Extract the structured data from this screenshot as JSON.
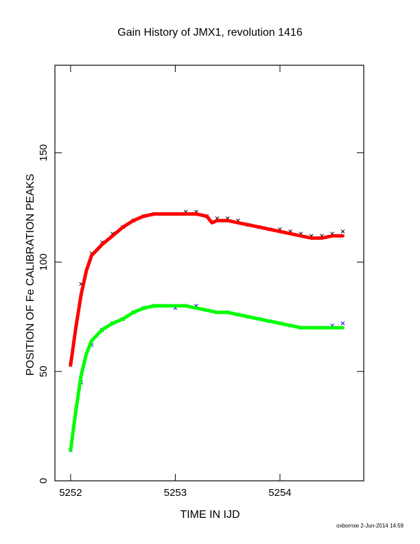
{
  "chart_data": {
    "type": "scatter",
    "title": "Gain History of JMX1, revolution 1416",
    "xlabel": "TIME IN IJD",
    "ylabel": "POSITION OF Fe CALIBRATION PEAKS",
    "xlim": [
      5251.85,
      5254.8
    ],
    "ylim": [
      0,
      190
    ],
    "x_ticks": [
      5252,
      5253,
      5254
    ],
    "y_ticks": [
      0,
      50,
      100,
      150
    ],
    "grid": false,
    "series": [
      {
        "role": "upper-peak-measurements",
        "color": "#000000",
        "marker": "x",
        "x": [
          5252.0,
          5252.1,
          5252.2,
          5252.3,
          5252.4,
          5252.5,
          5252.6,
          5252.7,
          5252.8,
          5252.9,
          5253.0,
          5253.1,
          5253.2,
          5253.3,
          5253.4,
          5253.5,
          5253.6,
          5253.7,
          5253.8,
          5253.9,
          5254.0,
          5254.1,
          5254.2,
          5254.3,
          5254.4,
          5254.5,
          5254.6
        ],
        "y": [
          53,
          90,
          104,
          109,
          113,
          116,
          119,
          121,
          122,
          122,
          122,
          123,
          123,
          121,
          120,
          120,
          119,
          117,
          116,
          115,
          115,
          114,
          113,
          112,
          112,
          113,
          114
        ]
      },
      {
        "role": "upper-peak-fit",
        "color": "#ff0000",
        "marker": "line",
        "x": [
          5252.0,
          5252.05,
          5252.1,
          5252.15,
          5252.2,
          5252.3,
          5252.4,
          5252.5,
          5252.6,
          5252.7,
          5252.8,
          5252.9,
          5253.0,
          5253.1,
          5253.2,
          5253.3,
          5253.35,
          5253.4,
          5253.5,
          5253.6,
          5253.7,
          5253.8,
          5253.9,
          5254.0,
          5254.1,
          5254.2,
          5254.3,
          5254.4,
          5254.5,
          5254.6
        ],
        "y": [
          53,
          70,
          85,
          96,
          103,
          108,
          112,
          116,
          119,
          121,
          122,
          122,
          122,
          122,
          122,
          121,
          118,
          119,
          119,
          118,
          117,
          116,
          115,
          114,
          113,
          112,
          111,
          111,
          112,
          112
        ]
      },
      {
        "role": "lower-peak-measurements",
        "color": "#0000ff",
        "marker": "x",
        "x": [
          5252.0,
          5252.1,
          5252.2,
          5252.3,
          5252.4,
          5252.5,
          5252.6,
          5252.7,
          5252.8,
          5252.9,
          5253.0,
          5253.1,
          5253.2,
          5253.3,
          5253.4,
          5253.5,
          5253.6,
          5253.7,
          5253.8,
          5253.9,
          5254.0,
          5254.1,
          5254.2,
          5254.3,
          5254.4,
          5254.5,
          5254.6
        ],
        "y": [
          14,
          45,
          62,
          69,
          72,
          74,
          77,
          79,
          80,
          80,
          79,
          80,
          80,
          78,
          77,
          77,
          76,
          75,
          74,
          73,
          72,
          71,
          70,
          70,
          70,
          71,
          72
        ]
      },
      {
        "role": "lower-peak-fit",
        "color": "#00ff00",
        "marker": "line",
        "x": [
          5252.0,
          5252.05,
          5252.1,
          5252.15,
          5252.2,
          5252.3,
          5252.4,
          5252.5,
          5252.6,
          5252.7,
          5252.8,
          5252.9,
          5253.0,
          5253.1,
          5253.2,
          5253.3,
          5253.4,
          5253.5,
          5253.6,
          5253.7,
          5253.8,
          5253.9,
          5254.0,
          5254.1,
          5254.2,
          5254.3,
          5254.4,
          5254.5,
          5254.6
        ],
        "y": [
          14,
          32,
          48,
          58,
          64,
          69,
          72,
          74,
          77,
          79,
          80,
          80,
          80,
          80,
          79,
          78,
          77,
          77,
          76,
          75,
          74,
          73,
          72,
          71,
          70,
          70,
          70,
          70,
          70
        ]
      }
    ]
  },
  "footer": {
    "credit": "oxborrow  2-Jun-2014 14:59"
  }
}
